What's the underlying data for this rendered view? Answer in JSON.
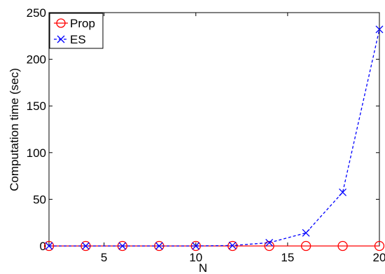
{
  "chart_data": {
    "type": "line",
    "title": "",
    "xlabel": "N",
    "ylabel": "Computation time (sec)",
    "xlim": [
      2,
      20
    ],
    "ylim": [
      0,
      250
    ],
    "xticks": [
      5,
      10,
      15,
      20
    ],
    "yticks": [
      0,
      50,
      100,
      150,
      200,
      250
    ],
    "grid": true,
    "legend_position": "top-left",
    "x": [
      2,
      4,
      6,
      8,
      10,
      12,
      14,
      16,
      18,
      20
    ],
    "series": [
      {
        "name": "Prop",
        "values": [
          0,
          0,
          0,
          0,
          0,
          0,
          0,
          0,
          0,
          0
        ],
        "color": "#ff0000",
        "line_style": "solid",
        "marker": "circle"
      },
      {
        "name": "ES",
        "values": [
          0,
          0,
          0,
          0,
          0,
          0.5,
          3.5,
          14,
          57.5,
          232
        ],
        "color": "#0000ff",
        "line_style": "dashed",
        "marker": "x"
      }
    ]
  }
}
